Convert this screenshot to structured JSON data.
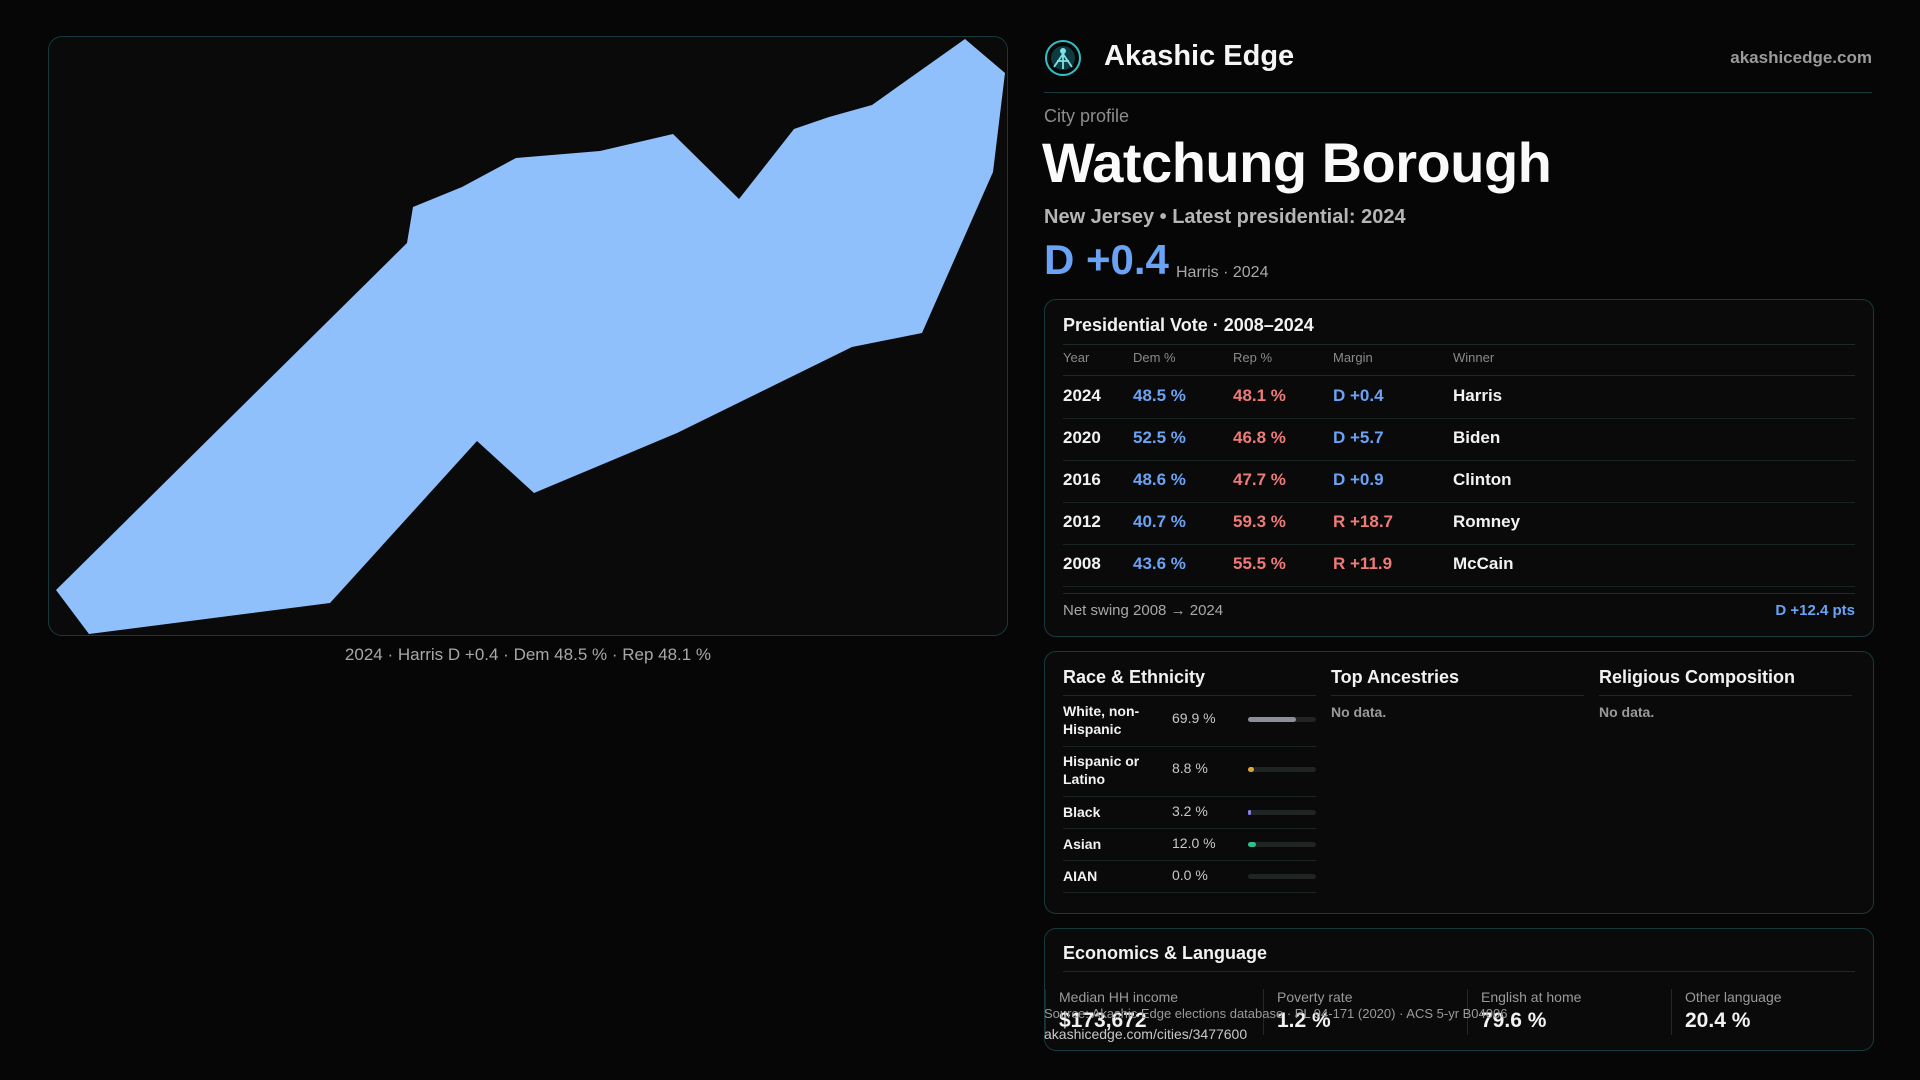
{
  "brand": {
    "name": "Akashic Edge",
    "site": "akashicedge.com"
  },
  "profile": {
    "kicker": "City profile",
    "city": "Watchung Borough",
    "subline": "New Jersey • Latest presidential: 2024",
    "margin": "D +0.4",
    "margin_note": "Harris · 2024"
  },
  "map": {
    "caption": "2024 · Harris D +0.4 · Dem 48.5 % · Rep 48.1 %",
    "fill_color": "#8fc0fb"
  },
  "presidential": {
    "title": "Presidential Vote · 2008–2024",
    "headers": [
      "Year",
      "Dem %",
      "Rep %",
      "Margin",
      "Winner"
    ],
    "rows": [
      {
        "year": "2024",
        "dem": "48.5 %",
        "rep": "48.1 %",
        "margin": "D +0.4",
        "party": "D",
        "winner": "Harris"
      },
      {
        "year": "2020",
        "dem": "52.5 %",
        "rep": "46.8 %",
        "margin": "D +5.7",
        "party": "D",
        "winner": "Biden"
      },
      {
        "year": "2016",
        "dem": "48.6 %",
        "rep": "47.7 %",
        "margin": "D +0.9",
        "party": "D",
        "winner": "Clinton"
      },
      {
        "year": "2012",
        "dem": "40.7 %",
        "rep": "59.3 %",
        "margin": "R +18.7",
        "party": "R",
        "winner": "Romney"
      },
      {
        "year": "2008",
        "dem": "43.6 %",
        "rep": "55.5 %",
        "margin": "R +11.9",
        "party": "R",
        "winner": "McCain"
      }
    ],
    "swing_label": "Net swing 2008 → 2024",
    "swing_value": "D +12.4 pts"
  },
  "demographics": {
    "race_title": "Race & Ethnicity",
    "race": [
      {
        "label": "White, non-Hispanic",
        "value": "69.9 %",
        "pct": 69.9,
        "color": "#8a9096"
      },
      {
        "label": "Hispanic or Latino",
        "value": "8.8 %",
        "pct": 8.8,
        "color": "#e0a23a"
      },
      {
        "label": "Black",
        "value": "3.2 %",
        "pct": 3.2,
        "color": "#8f7cf0"
      },
      {
        "label": "Asian",
        "value": "12.0 %",
        "pct": 12.0,
        "color": "#2fbf8f"
      },
      {
        "label": "AIAN",
        "value": "0.0 %",
        "pct": 0.0,
        "color": "#c06a6a"
      }
    ],
    "ancestry_title": "Top Ancestries",
    "ancestry_empty": "No data.",
    "religion_title": "Religious Composition",
    "religion_empty": "No data."
  },
  "economics": {
    "title": "Economics & Language",
    "stats": [
      {
        "label": "Median HH income",
        "value": "$173,672"
      },
      {
        "label": "Poverty rate",
        "value": "1.2 %"
      },
      {
        "label": "English at home",
        "value": "79.6 %"
      },
      {
        "label": "Other language",
        "value": "20.4 %"
      }
    ]
  },
  "footer": {
    "source": "Source: Akashic Edge elections database · PL 94-171 (2020) · ACS 5-yr B04006",
    "url": "akashicedge.com/cities/3477600"
  },
  "colors": {
    "accent": "#6aa3f5",
    "dem": "#6aa3f5",
    "rep": "#f07a78",
    "border": "#173a3c"
  }
}
